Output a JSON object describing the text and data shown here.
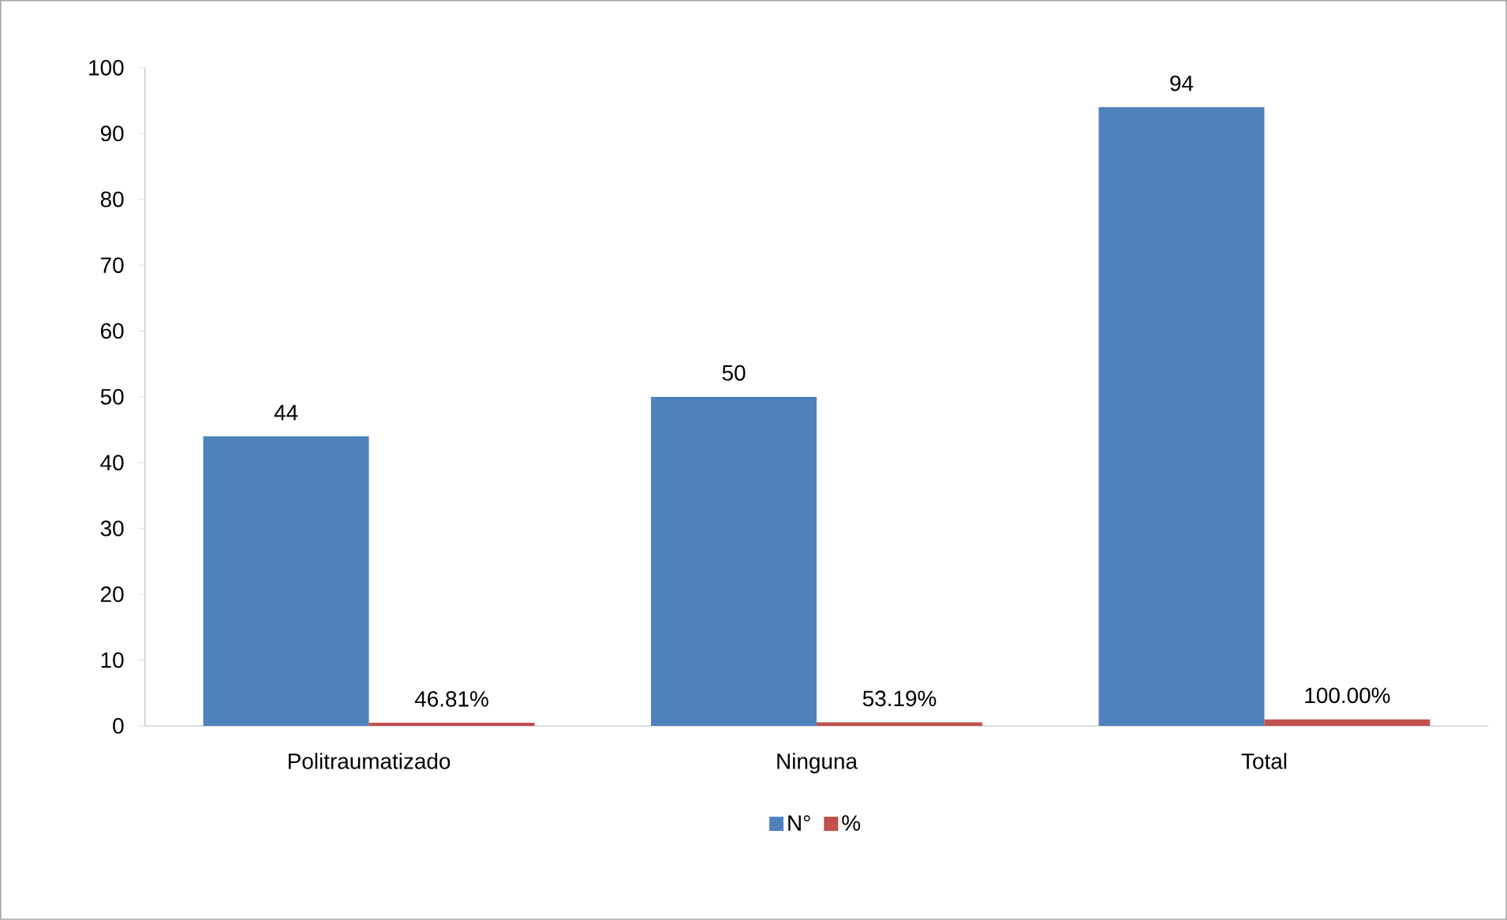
{
  "chart_data": {
    "type": "bar",
    "categories": [
      "Politraumatizado",
      "Ninguna",
      "Total"
    ],
    "series": [
      {
        "name": "N°",
        "color": "#4f81bd",
        "values": [
          44,
          50,
          94
        ],
        "value_labels": [
          "44",
          "50",
          "94"
        ]
      },
      {
        "name": "%",
        "color": "#c0504d",
        "values": [
          0.4681,
          0.5319,
          1.0
        ],
        "value_labels": [
          "46.81%",
          "53.19%",
          "100.00%"
        ]
      }
    ],
    "ylim": [
      0,
      100
    ],
    "yticks": [
      0,
      10,
      20,
      30,
      40,
      50,
      60,
      70,
      80,
      90,
      100
    ],
    "grid": false,
    "legend": "bottom"
  }
}
